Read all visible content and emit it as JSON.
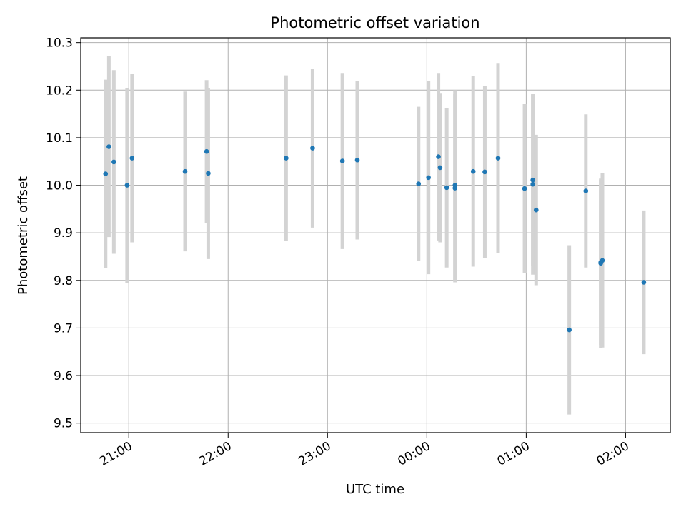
{
  "chart_data": {
    "type": "scatter",
    "title": "Photometric offset variation",
    "xlabel": "UTC time",
    "ylabel": "Photometric offset",
    "x_ticks": [
      "21:00",
      "22:00",
      "23:00",
      "00:00",
      "01:00",
      "02:00"
    ],
    "y_ticks": [
      "9.5",
      "9.6",
      "9.7",
      "9.8",
      "9.9",
      "10.0",
      "10.1",
      "10.2",
      "10.3"
    ],
    "xlim": [
      "20:31",
      "02:27"
    ],
    "ylim": [
      9.48,
      10.31
    ],
    "grid": true,
    "marker_color": "#1f77b4",
    "errorbar_color": "#d3d3d3",
    "points": [
      {
        "x": "20:46",
        "y": 10.024,
        "err": 0.198
      },
      {
        "x": "20:48",
        "y": 10.081,
        "err": 0.19
      },
      {
        "x": "20:51",
        "y": 10.049,
        "err": 0.193
      },
      {
        "x": "20:59",
        "y": 10.0,
        "err": 0.205
      },
      {
        "x": "21:02",
        "y": 10.057,
        "err": 0.177
      },
      {
        "x": "21:34",
        "y": 10.029,
        "err": 0.168
      },
      {
        "x": "21:47",
        "y": 10.071,
        "err": 0.15
      },
      {
        "x": "21:48",
        "y": 10.025,
        "err": 0.18
      },
      {
        "x": "22:35",
        "y": 10.057,
        "err": 0.174
      },
      {
        "x": "22:51",
        "y": 10.078,
        "err": 0.167
      },
      {
        "x": "23:09",
        "y": 10.051,
        "err": 0.185
      },
      {
        "x": "23:18",
        "y": 10.053,
        "err": 0.167
      },
      {
        "x": "23:55",
        "y": 10.003,
        "err": 0.162
      },
      {
        "x": "00:01",
        "y": 10.016,
        "err": 0.203
      },
      {
        "x": "00:07",
        "y": 10.06,
        "err": 0.176
      },
      {
        "x": "00:08",
        "y": 10.037,
        "err": 0.157
      },
      {
        "x": "00:12",
        "y": 9.995,
        "err": 0.168
      },
      {
        "x": "00:17",
        "y": 10.0,
        "err": 0.2
      },
      {
        "x": "00:17",
        "y": 9.994,
        "err": 0.198
      },
      {
        "x": "00:28",
        "y": 10.029,
        "err": 0.2
      },
      {
        "x": "00:35",
        "y": 10.028,
        "err": 0.181
      },
      {
        "x": "00:43",
        "y": 10.057,
        "err": 0.2
      },
      {
        "x": "00:59",
        "y": 9.993,
        "err": 0.178
      },
      {
        "x": "01:04",
        "y": 10.011,
        "err": 0.18
      },
      {
        "x": "01:04",
        "y": 10.002,
        "err": 0.19
      },
      {
        "x": "01:06",
        "y": 9.948,
        "err": 0.158
      },
      {
        "x": "01:26",
        "y": 9.696,
        "err": 0.178
      },
      {
        "x": "01:36",
        "y": 9.988,
        "err": 0.161
      },
      {
        "x": "01:45",
        "y": 9.836,
        "err": 0.178
      },
      {
        "x": "01:45",
        "y": 9.838,
        "err": 0.173
      },
      {
        "x": "01:46",
        "y": 9.842,
        "err": 0.183
      },
      {
        "x": "02:11",
        "y": 9.796,
        "err": 0.151
      }
    ]
  }
}
